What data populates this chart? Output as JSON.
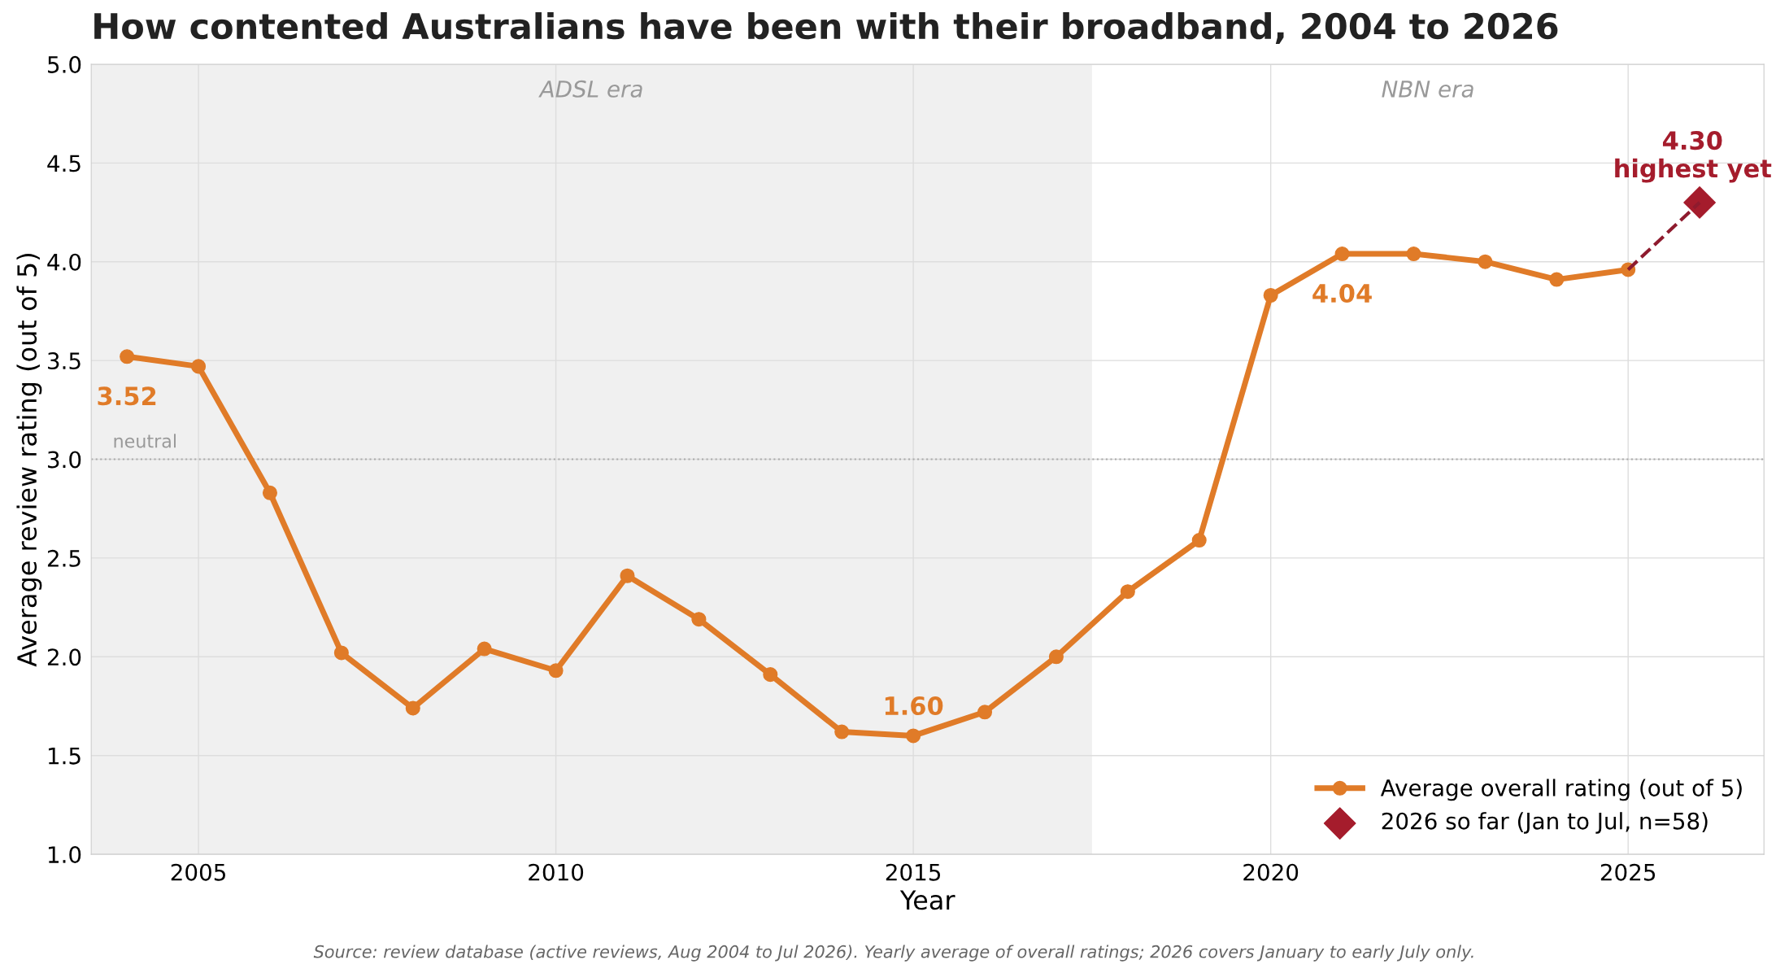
{
  "chart_data": {
    "type": "line",
    "title": "How contented Australians have been with their broadband, 2004 to 2026",
    "xlabel": "Year",
    "ylabel": "Average review rating (out of 5)",
    "x": [
      2004,
      2005,
      2006,
      2007,
      2008,
      2009,
      2010,
      2011,
      2012,
      2013,
      2014,
      2015,
      2016,
      2017,
      2018,
      2019,
      2020,
      2021,
      2022,
      2023,
      2024,
      2025,
      2026
    ],
    "series": [
      {
        "name": "Average overall rating (out of 5)",
        "color": "#e07b28",
        "values": [
          3.52,
          3.47,
          2.83,
          2.02,
          1.74,
          2.04,
          1.93,
          2.41,
          2.19,
          1.91,
          1.62,
          1.6,
          1.72,
          2.0,
          2.33,
          2.59,
          3.83,
          4.04,
          4.04,
          4.0,
          3.91,
          3.96,
          null
        ],
        "marker": "circle",
        "line_style": "solid"
      },
      {
        "type": "line",
        "color": "#8e1b2e",
        "values": [
          null,
          null,
          null,
          null,
          null,
          null,
          null,
          null,
          null,
          null,
          null,
          null,
          null,
          null,
          null,
          null,
          null,
          null,
          null,
          null,
          null,
          3.96,
          4.3
        ],
        "marker": "none",
        "line_style": "dashed"
      },
      {
        "type": "scatter",
        "name": "2026 so far (Jan to Jul, n=58)",
        "color": "#a51c2c",
        "values": [
          null,
          null,
          null,
          null,
          null,
          null,
          null,
          null,
          null,
          null,
          null,
          null,
          null,
          null,
          null,
          null,
          null,
          null,
          null,
          null,
          null,
          null,
          4.3
        ],
        "marker": "diamond"
      }
    ],
    "xlim": [
      2003.5,
      2026.9
    ],
    "xticks": [
      2005,
      2010,
      2015,
      2020,
      2025
    ],
    "ylim": [
      1.0,
      5.0
    ],
    "yticks": [
      {
        "value": 1.0,
        "label": "1.0"
      },
      {
        "value": 1.5,
        "label": "1.5"
      },
      {
        "value": 2.0,
        "label": "2.0"
      },
      {
        "value": 2.5,
        "label": "2.5"
      },
      {
        "value": 3.0,
        "label": "3.0"
      },
      {
        "value": 3.5,
        "label": "3.5"
      },
      {
        "value": 4.0,
        "label": "4.0"
      },
      {
        "value": 4.5,
        "label": "4.5"
      },
      {
        "value": 5.0,
        "label": "5.0"
      }
    ],
    "ref_lines": [
      {
        "axis": "y",
        "value": 3.0,
        "label": "neutral",
        "color": "#aaaaaa",
        "line_style": "dotted"
      }
    ],
    "bands": [
      {
        "axis": "x",
        "from": 2003.5,
        "to": 2017.5,
        "label": "ADSL era",
        "color": "#f0f0f0"
      }
    ],
    "annotations": [
      "NBN era",
      {
        "text": "3.52",
        "x": 2004,
        "y": 3.52
      },
      {
        "text": "1.60",
        "x": 2015,
        "y": 1.6
      },
      {
        "text": "4.04",
        "x": 2021,
        "y": 4.04
      },
      {
        "text": "4.30\nhighest yet",
        "x": 2026,
        "y": 4.3
      },
      "Source: review database (active reviews, Aug 2004 to Jul 2026). Yearly average of overall ratings; 2026 covers January to early July only."
    ],
    "grid": true,
    "legend": "bottom right"
  }
}
